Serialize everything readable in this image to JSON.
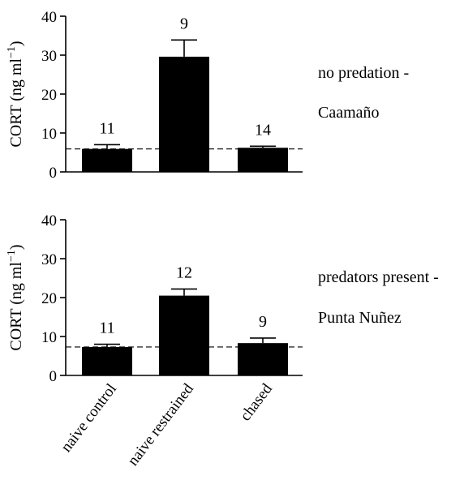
{
  "chart_data": [
    {
      "type": "bar",
      "panel_label": [
        "no predation -",
        "Caamaño"
      ],
      "ylabel": "CORT (ng ml",
      "ylabel_sup": "−1",
      "ylabel_close": ")",
      "ylim": [
        0,
        40
      ],
      "yticks": [
        "0",
        "10",
        "20",
        "30",
        "40"
      ],
      "categories": [
        "naive control",
        "naive restrained",
        "chased"
      ],
      "values": [
        5.9,
        29.6,
        6.2
      ],
      "errors": [
        1.1,
        4.3,
        0.4
      ],
      "n": [
        "11",
        "9",
        "14"
      ],
      "baseline": 5.9
    },
    {
      "type": "bar",
      "panel_label": [
        "predators present -",
        "Punta Nuñez"
      ],
      "ylabel": "CORT (ng ml",
      "ylabel_sup": "−1",
      "ylabel_close": ")",
      "ylim": [
        0,
        40
      ],
      "yticks": [
        "0",
        "10",
        "20",
        "30",
        "40"
      ],
      "categories": [
        "naive control",
        "naive restrained",
        "chased"
      ],
      "values": [
        7.3,
        20.5,
        8.3
      ],
      "errors": [
        0.7,
        1.7,
        1.3
      ],
      "n": [
        "11",
        "12",
        "9"
      ],
      "baseline": 7.3
    }
  ],
  "x_categories": [
    "naive control",
    "naive restrained",
    "chased"
  ]
}
